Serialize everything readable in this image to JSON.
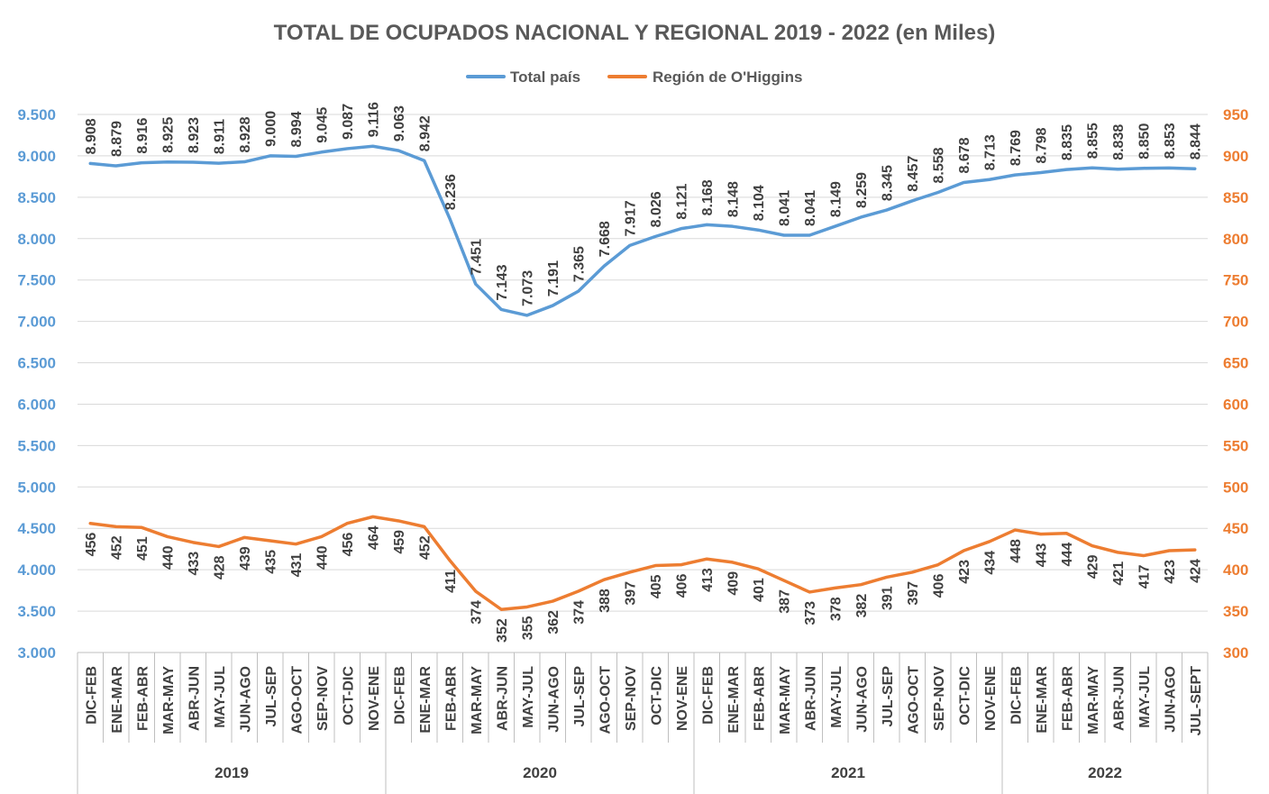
{
  "chart_data": {
    "type": "line",
    "title": "TOTAL DE OCUPADOS NACIONAL Y REGIONAL 2019 - 2022 (en Miles)",
    "categories": [
      "DIC-FEB",
      "ENE-MAR",
      "FEB-ABR",
      "MAR-MAY",
      "ABR-JUN",
      "MAY-JUL",
      "JUN-AGO",
      "JUL-SEP",
      "AGO-OCT",
      "SEP-NOV",
      "OCT-DIC",
      "NOV-ENE",
      "DIC-FEB",
      "ENE-MAR",
      "FEB-ABR",
      "MAR-MAY",
      "ABR-JUN",
      "MAY-JUL",
      "JUN-AGO",
      "JUL-SEP",
      "AGO-OCT",
      "SEP-NOV",
      "OCT-DIC",
      "NOV-ENE",
      "DIC-FEB",
      "ENE-MAR",
      "FEB-ABR",
      "MAR-MAY",
      "ABR-JUN",
      "MAY-JUL",
      "JUN-AGO",
      "JUL-SEP",
      "AGO-OCT",
      "SEP-NOV",
      "OCT-DIC",
      "NOV-ENE",
      "DIC-FEB",
      "ENE-MAR",
      "FEB-ABR",
      "MAR-MAY",
      "ABR-JUN",
      "MAY-JUL",
      "JUN-AGO",
      "JUL-SEPT"
    ],
    "groups": [
      {
        "label": "2019",
        "count": 12
      },
      {
        "label": "2020",
        "count": 12
      },
      {
        "label": "2021",
        "count": 12
      },
      {
        "label": "2022",
        "count": 8
      }
    ],
    "series": [
      {
        "name": "Total país",
        "axis": "left",
        "color": "#5b9bd5",
        "values": [
          8908,
          8879,
          8916,
          8925,
          8923,
          8911,
          8928,
          9000,
          8994,
          9045,
          9087,
          9116,
          9063,
          8942,
          8236,
          7451,
          7143,
          7073,
          7191,
          7365,
          7668,
          7917,
          8026,
          8121,
          8168,
          8148,
          8104,
          8041,
          8041,
          8149,
          8259,
          8345,
          8457,
          8558,
          8678,
          8713,
          8769,
          8798,
          8835,
          8855,
          8838,
          8850,
          8853,
          8844
        ],
        "labels": [
          "8.908",
          "8.879",
          "8.916",
          "8.925",
          "8.923",
          "8.911",
          "8.928",
          "9.000",
          "8.994",
          "9.045",
          "9.087",
          "9.116",
          "9.063",
          "8.942",
          "8.236",
          "7.451",
          "7.143",
          "7.073",
          "7.191",
          "7.365",
          "7.668",
          "7.917",
          "8.026",
          "8.121",
          "8.168",
          "8.148",
          "8.104",
          "8.041",
          "8.041",
          "8.149",
          "8.259",
          "8.345",
          "8.457",
          "8.558",
          "8.678",
          "8.713",
          "8.769",
          "8.798",
          "8.835",
          "8.855",
          "8.838",
          "8.850",
          "8.853",
          "8.844"
        ]
      },
      {
        "name": "Región de O'Higgins",
        "axis": "right",
        "color": "#ed7d31",
        "values": [
          456,
          452,
          451,
          440,
          433,
          428,
          439,
          435,
          431,
          440,
          456,
          464,
          459,
          452,
          411,
          374,
          352,
          355,
          362,
          374,
          388,
          397,
          405,
          406,
          413,
          409,
          401,
          387,
          373,
          378,
          382,
          391,
          397,
          406,
          423,
          434,
          448,
          443,
          444,
          429,
          421,
          417,
          423,
          424
        ],
        "labels": [
          "456",
          "452",
          "451",
          "440",
          "433",
          "428",
          "439",
          "435",
          "431",
          "440",
          "456",
          "464",
          "459",
          "452",
          "411",
          "374",
          "352",
          "355",
          "362",
          "374",
          "388",
          "397",
          "405",
          "406",
          "413",
          "409",
          "401",
          "387",
          "373",
          "378",
          "382",
          "391",
          "397",
          "406",
          "423",
          "434",
          "448",
          "443",
          "444",
          "429",
          "421",
          "417",
          "423",
          "424"
        ]
      }
    ],
    "y_left": {
      "min": 3000,
      "max": 9500,
      "step": 500,
      "tick_labels": [
        "3.000",
        "3.500",
        "4.000",
        "4.500",
        "5.000",
        "5.500",
        "6.000",
        "6.500",
        "7.000",
        "7.500",
        "8.000",
        "8.500",
        "9.000",
        "9.500"
      ],
      "color": "#5b9bd5"
    },
    "y_right": {
      "min": 300,
      "max": 950,
      "step": 50,
      "tick_labels": [
        "300",
        "350",
        "400",
        "450",
        "500",
        "550",
        "600",
        "650",
        "700",
        "750",
        "800",
        "850",
        "900",
        "950"
      ],
      "color": "#ed7d31"
    },
    "grid": true,
    "legend_position": "top-center"
  }
}
